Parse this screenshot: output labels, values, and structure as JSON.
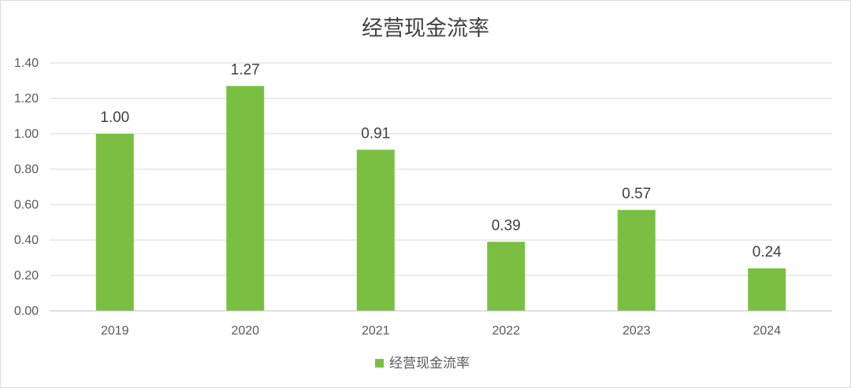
{
  "chart_data": {
    "type": "bar",
    "title": "经营现金流率",
    "categories": [
      "2019",
      "2020",
      "2021",
      "2022",
      "2023",
      "2024"
    ],
    "series": [
      {
        "name": "经营现金流率",
        "values": [
          1.0,
          1.27,
          0.91,
          0.39,
          0.57,
          0.24
        ],
        "color": "#7ABF42"
      }
    ],
    "data_labels": [
      "1.00",
      "1.27",
      "0.91",
      "0.39",
      "0.57",
      "0.24"
    ],
    "y_ticks": [
      "0.00",
      "0.20",
      "0.40",
      "0.60",
      "0.80",
      "1.00",
      "1.20",
      "1.40"
    ],
    "ylim": [
      0,
      1.4
    ],
    "xlabel": "",
    "ylabel": "",
    "grid": true,
    "legend_position": "bottom",
    "gridline_color": "#d9d9d9",
    "axis_color": "#bfbfbf"
  }
}
